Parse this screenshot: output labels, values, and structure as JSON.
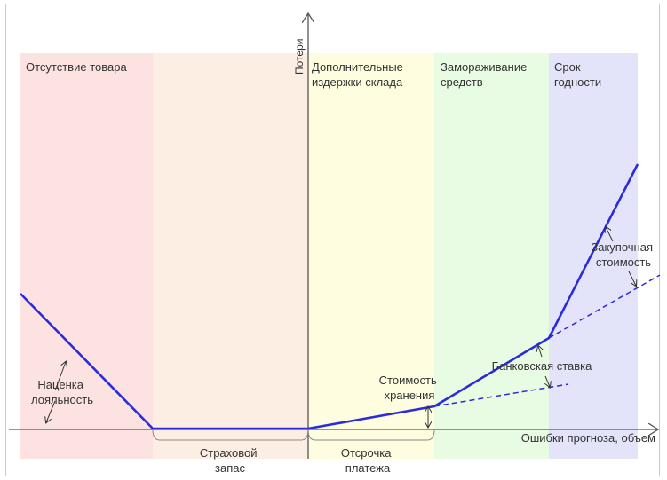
{
  "zones": [
    {
      "label_lines": [
        "Отсутствие товара"
      ],
      "color": "#fde2e2"
    },
    {
      "label_lines": [],
      "color": "#fdeee4"
    },
    {
      "label_lines": [
        "Дополнительные",
        "издержки склада"
      ],
      "color": "#fefde0"
    },
    {
      "label_lines": [
        "Замораживание",
        "средств"
      ],
      "color": "#e8fbe3"
    },
    {
      "label_lines": [
        "Срок",
        "годности"
      ],
      "color": "#e3e3fa"
    }
  ],
  "axes": {
    "y_label": "Потери",
    "x_label": "Ошибки прогноза, объем"
  },
  "bottom_labels": {
    "safety_stock": [
      "Страховой",
      "запас"
    ],
    "payment_delay": [
      "Отсрочка",
      "платежа"
    ]
  },
  "annotations": {
    "markup": [
      "Наценка",
      "лояльность"
    ],
    "storage_cost": [
      "Стоимость",
      "хранения"
    ],
    "bank_rate": "Банковская ставка",
    "purchase_cost": [
      "Закупочная",
      "стоимость"
    ]
  },
  "colors": {
    "curve": "#2b2bdc",
    "axis": "#555555"
  }
}
